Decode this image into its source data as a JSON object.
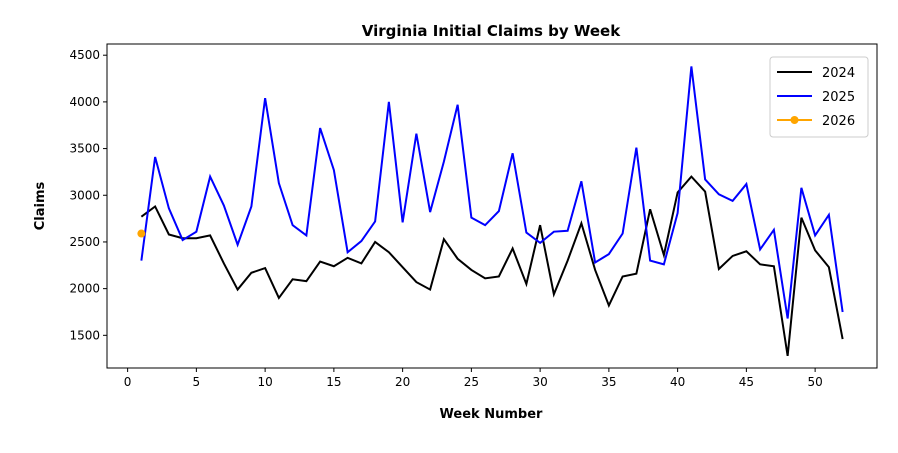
{
  "chart_data": {
    "type": "line",
    "title": "Virginia Initial Claims by Week",
    "xlabel": "Week Number",
    "ylabel": "Claims",
    "xlim": [
      -1.5,
      54.5
    ],
    "ylim": [
      1150,
      4620
    ],
    "xticks": [
      0,
      5,
      10,
      15,
      20,
      25,
      30,
      35,
      40,
      45,
      50
    ],
    "yticks": [
      1500,
      2000,
      2500,
      3000,
      3500,
      4000,
      4500
    ],
    "grid": false,
    "legend_position": "top-right",
    "series": [
      {
        "name": "2024",
        "color": "#000000",
        "marker": false,
        "x": [
          1,
          2,
          3,
          4,
          5,
          6,
          7,
          8,
          9,
          10,
          11,
          12,
          13,
          14,
          15,
          16,
          17,
          18,
          19,
          20,
          21,
          22,
          23,
          24,
          25,
          26,
          27,
          28,
          29,
          30,
          31,
          32,
          33,
          34,
          35,
          36,
          37,
          38,
          39,
          40,
          41,
          42,
          43,
          44,
          45,
          46,
          47,
          48,
          49,
          50,
          51,
          52
        ],
        "values": [
          2770,
          2880,
          2580,
          2540,
          2540,
          2570,
          2270,
          1990,
          2170,
          2220,
          1900,
          2100,
          2080,
          2290,
          2240,
          2330,
          2270,
          2500,
          2390,
          2230,
          2070,
          1990,
          2530,
          2320,
          2200,
          2110,
          2130,
          2430,
          2050,
          2680,
          1940,
          2300,
          2700,
          2200,
          1820,
          2130,
          2160,
          2850,
          2360,
          3030,
          3200,
          3040,
          2210,
          2350,
          2400,
          2260,
          2240,
          1280,
          2760,
          2410,
          2230,
          1460
        ]
      },
      {
        "name": "2025",
        "color": "#0000ff",
        "marker": false,
        "x": [
          1,
          2,
          3,
          4,
          5,
          6,
          7,
          8,
          9,
          10,
          11,
          12,
          13,
          14,
          15,
          16,
          17,
          18,
          19,
          20,
          21,
          22,
          23,
          24,
          25,
          26,
          27,
          28,
          29,
          30,
          31,
          32,
          33,
          34,
          35,
          36,
          37,
          38,
          39,
          40,
          41,
          42,
          43,
          44,
          45,
          46,
          47,
          48,
          49,
          50,
          51,
          52
        ],
        "values": [
          2300,
          3410,
          2860,
          2520,
          2610,
          3200,
          2890,
          2470,
          2880,
          4040,
          3130,
          2680,
          2570,
          3720,
          3270,
          2390,
          2510,
          2720,
          4000,
          2710,
          3660,
          2820,
          3360,
          3970,
          2760,
          2680,
          2830,
          3450,
          2600,
          2490,
          2610,
          2620,
          3150,
          2280,
          2370,
          2590,
          3510,
          2300,
          2260,
          2810,
          4380,
          3170,
          3010,
          2940,
          3120,
          2420,
          2630,
          1680,
          3080,
          2570,
          2790,
          1750
        ]
      },
      {
        "name": "2026",
        "color": "#ffa500",
        "marker": true,
        "x": [
          1
        ],
        "values": [
          2590
        ]
      }
    ]
  }
}
